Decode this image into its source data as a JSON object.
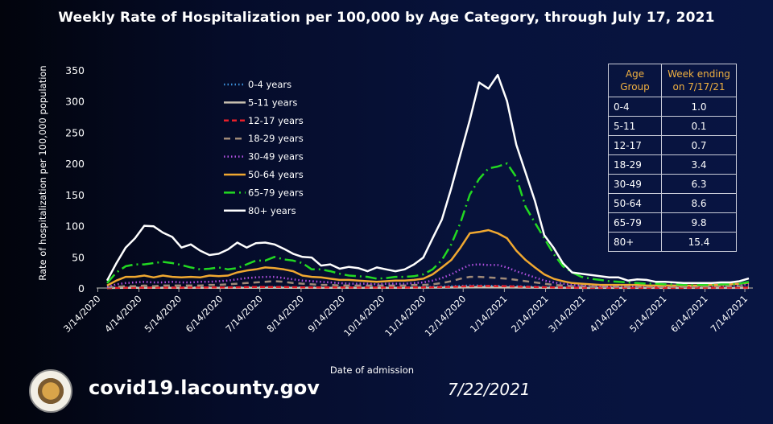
{
  "chart_data": {
    "type": "line",
    "title": "Weekly Rate of Hospitalization per 100,000 by Age Category, through July 17, 2021",
    "xlabel": "Date of admission",
    "ylabel": "Rate of hospitalization per 100,000 population",
    "ylim": [
      0,
      350
    ],
    "yticks": [
      0,
      50,
      100,
      150,
      200,
      250,
      300,
      350
    ],
    "xtick_labels": [
      "3/14/2020",
      "4/14/2020",
      "5/14/2020",
      "6/14/2020",
      "7/14/2020",
      "8/14/2020",
      "9/14/2020",
      "10/14/2020",
      "11/14/2020",
      "12/14/2020",
      "1/14/2021",
      "2/14/2021",
      "3/14/2021",
      "4/14/2021",
      "5/14/2021",
      "6/14/2021",
      "7/14/2021"
    ],
    "x_start": "3/21/2020",
    "x_end": "7/17/2021",
    "x_interval": "weekly",
    "legend_position": "top-left",
    "grid": false,
    "series": [
      {
        "name": "0-4 years",
        "color": "#3a8fd8",
        "style": "dotted",
        "values": [
          0,
          0.5,
          1,
          1,
          1,
          1,
          1,
          1,
          1,
          1,
          1,
          1,
          1,
          1,
          1,
          1.5,
          1.5,
          1.5,
          1.5,
          1.5,
          1,
          1,
          1,
          1,
          1,
          1,
          1,
          1,
          1,
          1,
          1,
          1,
          1,
          1,
          1.5,
          2,
          2.5,
          3,
          3.5,
          4,
          4,
          3.5,
          3.5,
          3,
          3,
          2.5,
          2,
          1.5,
          1,
          1,
          0.8,
          0.6,
          0.5,
          0.5,
          0.5,
          0.5,
          0.5,
          0.5,
          0.5,
          0.5,
          0.5,
          0.5,
          0.5,
          0.6,
          0.6,
          0.7,
          0.8,
          0.8,
          0.9,
          1.0
        ]
      },
      {
        "name": "5-11 years",
        "color": "#c8c0b0",
        "style": "solid",
        "values": [
          0,
          0.1,
          0.2,
          0.2,
          0.2,
          0.2,
          0.2,
          0.2,
          0.2,
          0.2,
          0.3,
          0.3,
          0.3,
          0.3,
          0.4,
          0.4,
          0.5,
          0.5,
          0.5,
          0.5,
          0.4,
          0.4,
          0.3,
          0.3,
          0.3,
          0.3,
          0.3,
          0.3,
          0.3,
          0.3,
          0.3,
          0.3,
          0.3,
          0.4,
          0.5,
          0.6,
          0.8,
          1,
          1.2,
          1.4,
          1.5,
          1.4,
          1.3,
          1.2,
          1,
          0.8,
          0.6,
          0.4,
          0.3,
          0.2,
          0.2,
          0.1,
          0.1,
          0.1,
          0.1,
          0.1,
          0.1,
          0.1,
          0.1,
          0.1,
          0.1,
          0.1,
          0.1,
          0.1,
          0.1,
          0.1,
          0.1,
          0.1,
          0.1,
          0.1
        ]
      },
      {
        "name": "12-17 years",
        "color": "#e8202a",
        "style": "dashed",
        "values": [
          0,
          0.3,
          0.5,
          0.5,
          0.6,
          0.6,
          0.7,
          0.7,
          0.7,
          0.8,
          0.8,
          0.9,
          1,
          1,
          1.2,
          1.4,
          1.5,
          1.6,
          1.6,
          1.5,
          1.3,
          1.2,
          1,
          1,
          0.9,
          0.9,
          0.8,
          0.8,
          0.8,
          0.8,
          0.8,
          0.8,
          0.8,
          0.9,
          1,
          1.3,
          1.6,
          2,
          2.5,
          3,
          3.2,
          3.2,
          3,
          2.8,
          2.4,
          2,
          1.6,
          1.3,
          1,
          0.8,
          0.6,
          0.5,
          0.5,
          0.5,
          0.4,
          0.4,
          0.4,
          0.4,
          0.4,
          0.4,
          0.4,
          0.4,
          0.4,
          0.5,
          0.5,
          0.5,
          0.6,
          0.6,
          0.6,
          0.7
        ]
      },
      {
        "name": "18-29 years",
        "color": "#a08a78",
        "style": "longdash",
        "values": [
          1,
          2,
          3,
          3,
          4,
          3,
          4,
          4,
          4,
          4,
          4,
          5,
          5,
          6,
          7,
          8,
          9,
          10,
          11,
          10,
          8,
          7,
          6,
          5,
          5,
          4,
          4,
          4,
          4,
          4,
          4,
          4,
          4,
          5,
          5,
          6,
          8,
          11,
          15,
          18,
          18,
          17,
          16,
          15,
          13,
          11,
          9,
          7,
          5,
          4,
          3,
          3,
          2,
          2,
          2,
          2,
          2,
          2,
          2,
          2,
          2,
          2,
          2,
          2,
          2.5,
          2.5,
          3,
          3,
          3,
          3.4
        ]
      },
      {
        "name": "30-49 years",
        "color": "#b050e0",
        "style": "dotted",
        "values": [
          2,
          6,
          8,
          9,
          10,
          9,
          9,
          10,
          9,
          9,
          10,
          10,
          11,
          12,
          14,
          16,
          17,
          18,
          18,
          16,
          14,
          12,
          11,
          10,
          9,
          8,
          7,
          7,
          7,
          6,
          7,
          7,
          7,
          8,
          9,
          12,
          16,
          22,
          30,
          37,
          38,
          37,
          37,
          33,
          27,
          22,
          17,
          12,
          9,
          7,
          5,
          4,
          4,
          3,
          3,
          3,
          3,
          3,
          3,
          3,
          3,
          3,
          3,
          3,
          3,
          4,
          4,
          5,
          5,
          6.3
        ]
      },
      {
        "name": "50-64 years",
        "color": "#f0a830",
        "style": "solid",
        "values": [
          4,
          12,
          18,
          18,
          20,
          17,
          20,
          18,
          17,
          18,
          17,
          20,
          19,
          20,
          25,
          28,
          30,
          33,
          32,
          30,
          27,
          20,
          18,
          17,
          15,
          13,
          13,
          12,
          11,
          10,
          11,
          12,
          12,
          13,
          15,
          22,
          33,
          45,
          65,
          88,
          90,
          93,
          88,
          80,
          60,
          45,
          33,
          22,
          15,
          11,
          8,
          7,
          6,
          5,
          5,
          5,
          5,
          5,
          4,
          4,
          4,
          4,
          4,
          4,
          4,
          5,
          5,
          6,
          7,
          8.6
        ]
      },
      {
        "name": "65-79 years",
        "color": "#22d822",
        "style": "dashdot",
        "values": [
          8,
          25,
          35,
          38,
          38,
          40,
          42,
          40,
          37,
          33,
          30,
          31,
          33,
          30,
          32,
          38,
          44,
          44,
          50,
          46,
          44,
          40,
          30,
          30,
          27,
          23,
          20,
          19,
          18,
          15,
          16,
          18,
          18,
          19,
          22,
          30,
          45,
          70,
          105,
          150,
          175,
          192,
          195,
          200,
          178,
          130,
          105,
          80,
          55,
          35,
          25,
          18,
          15,
          13,
          11,
          10,
          9,
          8,
          7,
          7,
          6,
          6,
          5,
          5,
          5,
          5,
          6,
          6,
          7,
          9.8
        ]
      },
      {
        "name": "80+ years",
        "color": "#ffffff",
        "style": "solid",
        "values": [
          12,
          40,
          65,
          80,
          100,
          99,
          89,
          82,
          65,
          70,
          60,
          53,
          55,
          62,
          73,
          65,
          72,
          73,
          70,
          63,
          55,
          50,
          49,
          36,
          38,
          31,
          34,
          32,
          27,
          33,
          30,
          27,
          30,
          38,
          49,
          80,
          110,
          160,
          215,
          270,
          330,
          320,
          342,
          300,
          230,
          185,
          140,
          85,
          65,
          40,
          25,
          23,
          21,
          19,
          17,
          17,
          12,
          14,
          13,
          10,
          10,
          9,
          8,
          8,
          8,
          8,
          9,
          9,
          11,
          15.4
        ]
      }
    ]
  },
  "table": {
    "headers": [
      "Age Group",
      "Week ending on 7/17/21"
    ],
    "rows": [
      [
        "0-4",
        "1.0"
      ],
      [
        "5-11",
        "0.1"
      ],
      [
        "12-17",
        "0.7"
      ],
      [
        "18-29",
        "3.4"
      ],
      [
        "30-49",
        "6.3"
      ],
      [
        "50-64",
        "8.6"
      ],
      [
        "65-79",
        "9.8"
      ],
      [
        "80+",
        "15.4"
      ]
    ]
  },
  "footer": {
    "url": "covid19.lacounty.gov",
    "date": "7/22/2021",
    "logo_text": "County of Los Angeles California"
  }
}
